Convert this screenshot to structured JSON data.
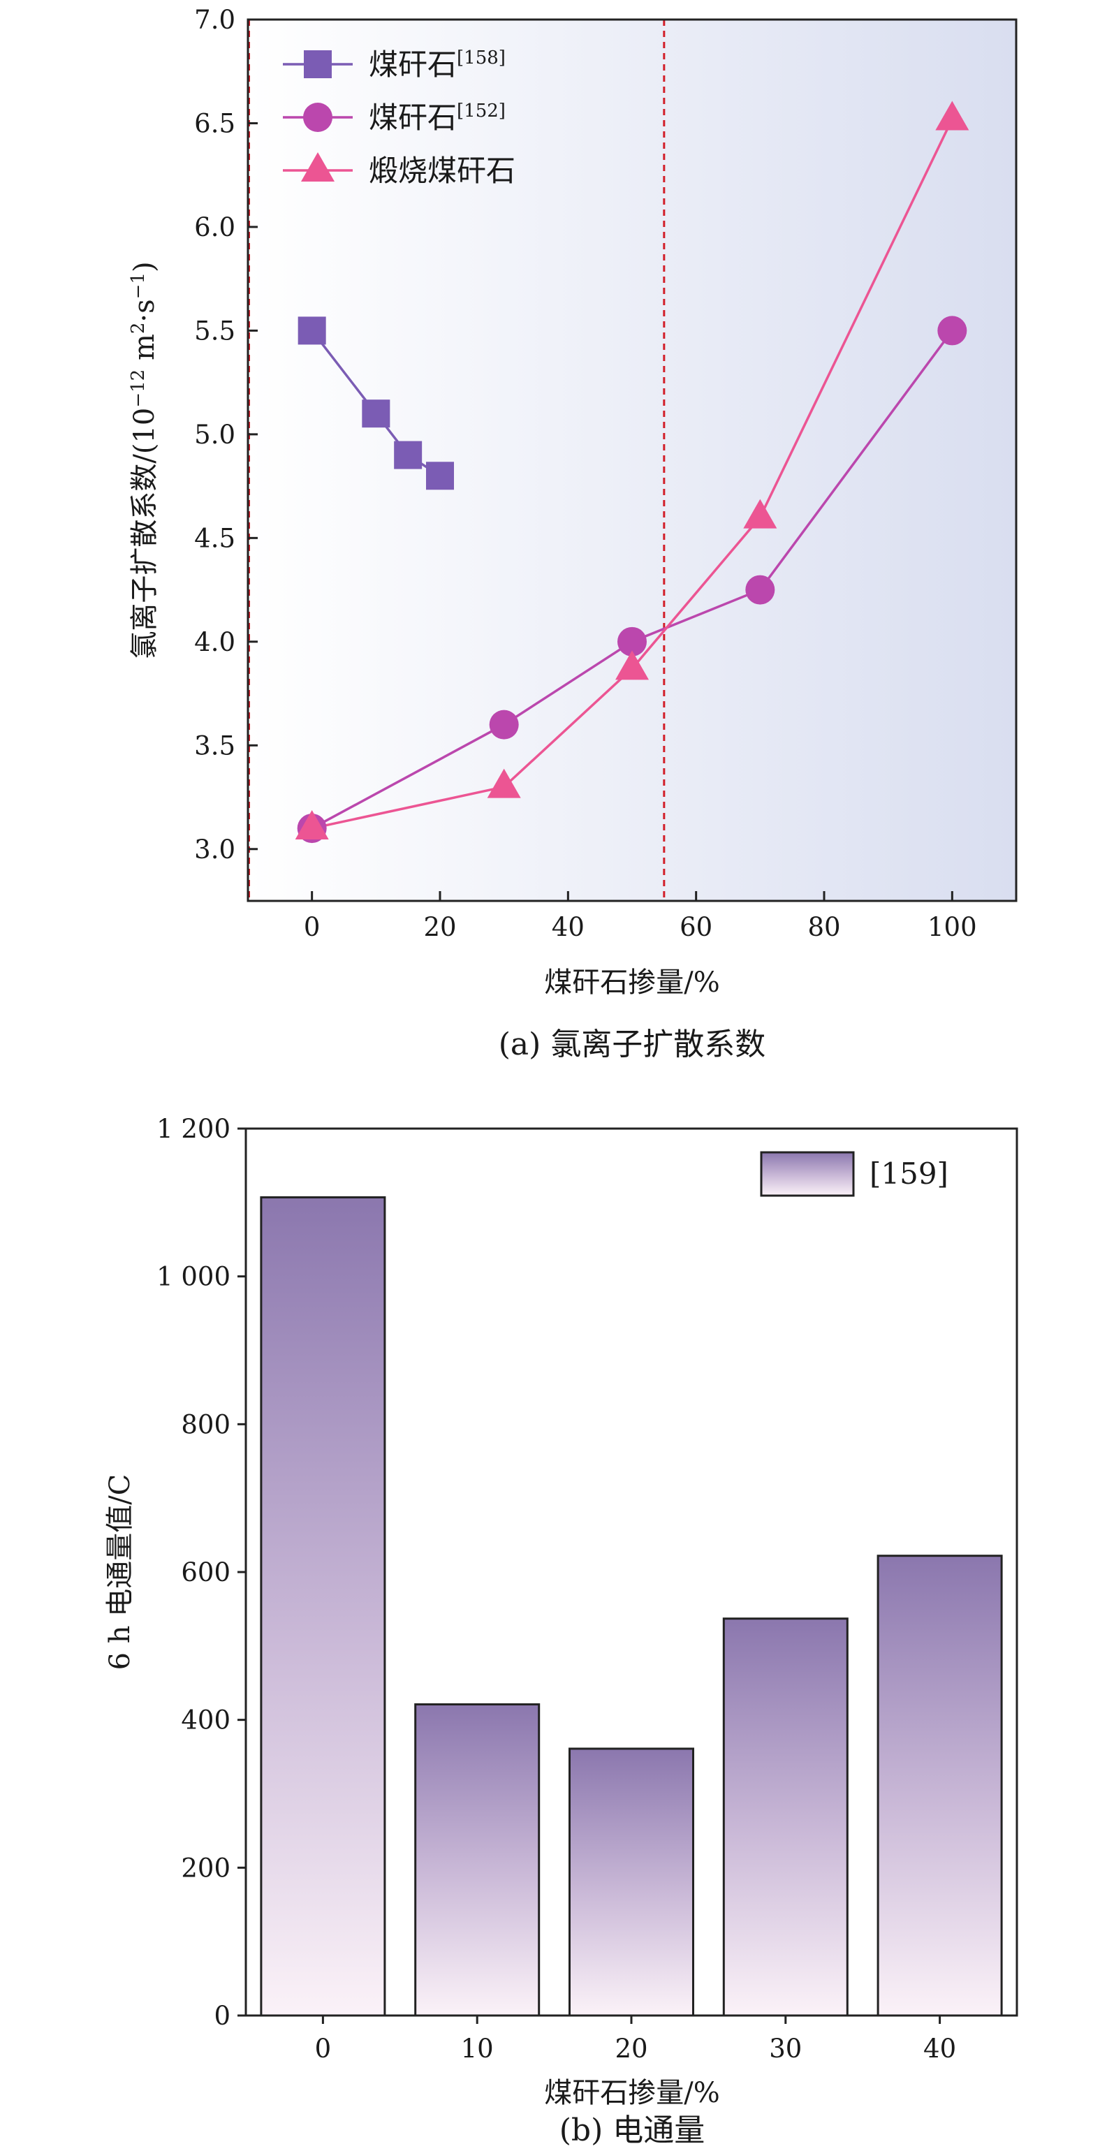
{
  "chart_data": [
    {
      "type": "line",
      "caption": "(a) 氯离子扩散系数",
      "xlabel": "煤矸石掺量/%",
      "ylabel": "氯离子扩散系数/(10⁻¹² m²·s⁻¹)",
      "xlim": [
        -10,
        110
      ],
      "ylim": [
        2.75,
        7.0
      ],
      "xticks": [
        0,
        20,
        40,
        60,
        80,
        100
      ],
      "xtick_labels": [
        "0",
        "20",
        "40",
        "60",
        "80",
        "100"
      ],
      "yticks": [
        3.0,
        3.5,
        4.0,
        4.5,
        5.0,
        5.5,
        6.0,
        6.5,
        7.0
      ],
      "ytick_labels": [
        "3.0",
        "3.5",
        "4.0",
        "4.5",
        "5.0",
        "5.5",
        "6.0",
        "6.5",
        "7.0"
      ],
      "vline_x": 55,
      "legend_position": "top-left",
      "series": [
        {
          "name": "煤矸石",
          "ref": "[158]",
          "marker": "square",
          "color": "#7b5cb4",
          "x": [
            0,
            10,
            15,
            20
          ],
          "y": [
            5.5,
            5.1,
            4.9,
            4.8
          ]
        },
        {
          "name": "煤矸石",
          "ref": "[152]",
          "marker": "circle",
          "color": "#bb47ad",
          "x": [
            0,
            30,
            50,
            70,
            100
          ],
          "y": [
            3.1,
            3.6,
            4.0,
            4.25,
            5.5
          ]
        },
        {
          "name": "煅烧煤矸石",
          "ref": "",
          "marker": "triangle",
          "color": "#ec5593",
          "x": [
            0,
            30,
            50,
            70,
            100
          ],
          "y": [
            3.1,
            3.3,
            3.87,
            4.6,
            6.52
          ]
        }
      ]
    },
    {
      "type": "bar",
      "caption": "(b) 电通量",
      "xlabel": "煤矸石掺量/%",
      "ylabel": "6 h 电通量值/C",
      "categories": [
        "0",
        "10",
        "20",
        "30",
        "40"
      ],
      "values": [
        1107,
        421,
        361,
        537,
        622
      ],
      "ylim": [
        0,
        1200
      ],
      "yticks": [
        0,
        200,
        400,
        600,
        800,
        1000,
        1200
      ],
      "ytick_labels": [
        "0",
        "200",
        "400",
        "600",
        "800",
        "1 000",
        "1 200"
      ],
      "legend_label": "[159]",
      "legend_position": "top-right",
      "colors": {
        "bar_top": "#8b77ae",
        "bar_bottom": "#fbf2f8"
      }
    }
  ]
}
